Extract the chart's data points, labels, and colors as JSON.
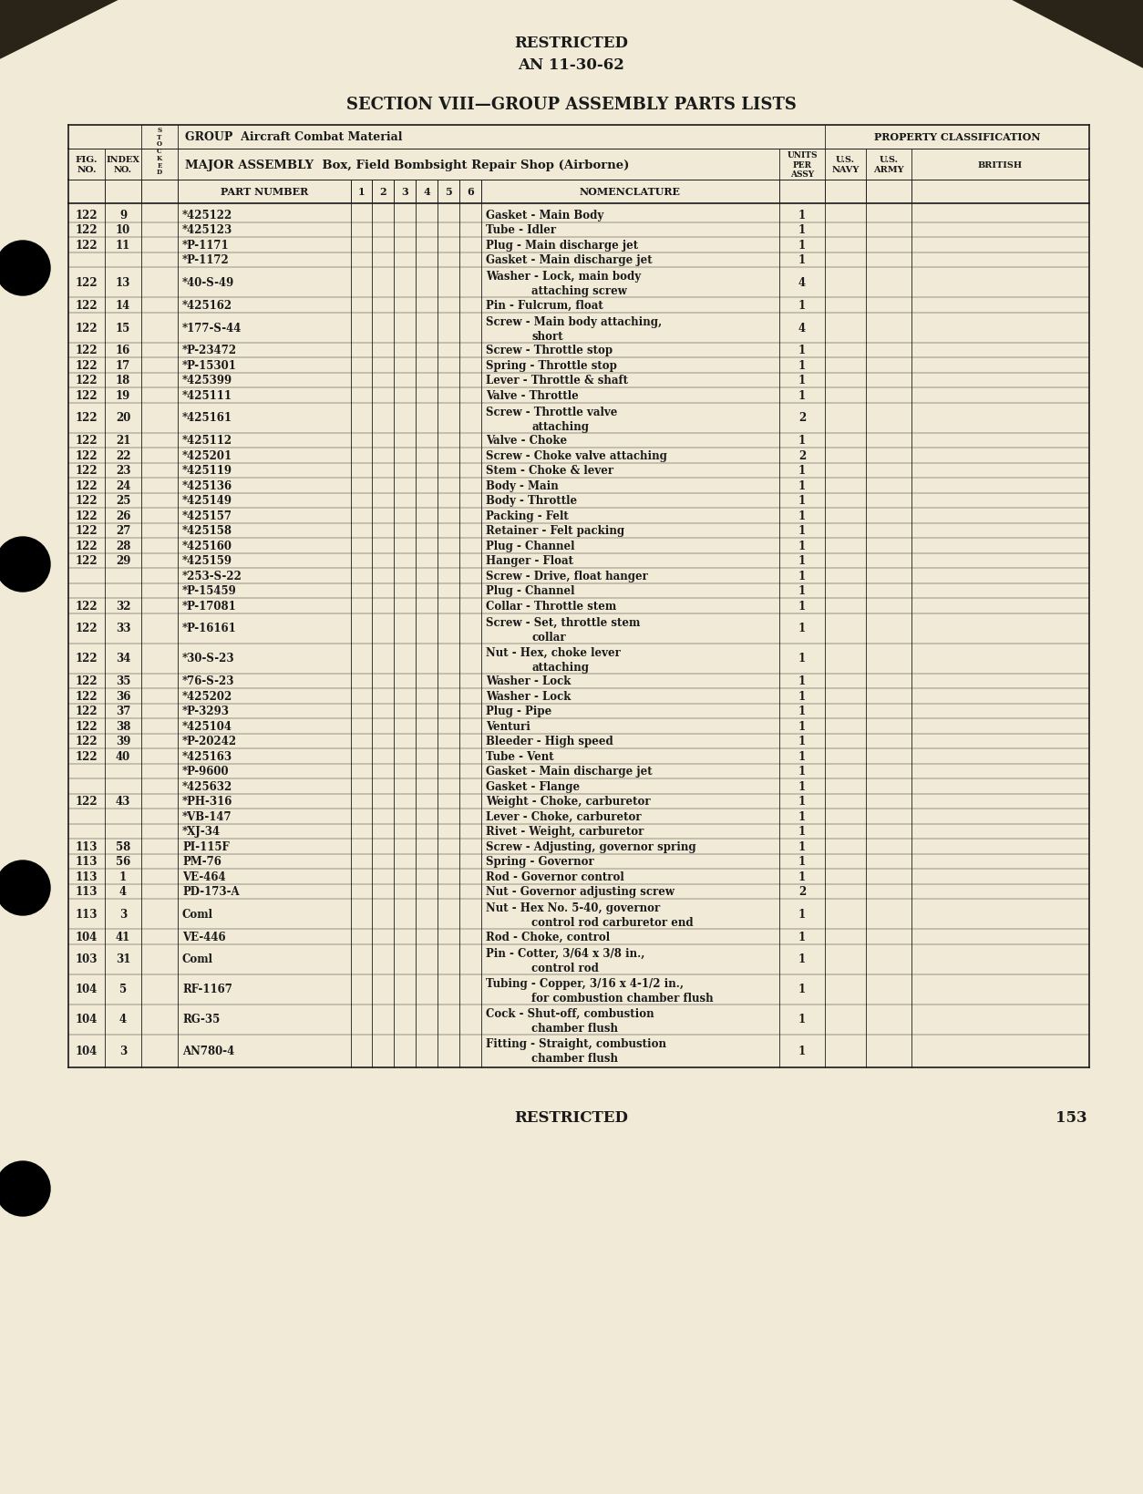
{
  "bg_color": "#f0ead6",
  "text_color": "#1a1a1a",
  "header_top": "RESTRICTED",
  "header_sub": "AN 11-30-62",
  "section_title": "SECTION VIII—GROUP ASSEMBLY PARTS LISTS",
  "footer_restricted": "RESTRICTED",
  "footer_page": "153",
  "rows": [
    [
      "122",
      "9",
      "*425122",
      "Gasket - Main Body",
      "1"
    ],
    [
      "122",
      "10",
      "*425123",
      "Tube - Idler",
      "1"
    ],
    [
      "122",
      "11",
      "*P-1171",
      "Plug - Main discharge jet",
      "1"
    ],
    [
      "",
      "",
      "*P-1172",
      "Gasket - Main discharge jet",
      "1"
    ],
    [
      "122",
      "13",
      "*40-S-49",
      "Washer - Lock, main body\n          attaching screw",
      "4"
    ],
    [
      "122",
      "14",
      "*425162",
      "Pin - Fulcrum, float",
      "1"
    ],
    [
      "122",
      "15",
      "*177-S-44",
      "Screw - Main body attaching,\n          short",
      "4"
    ],
    [
      "122",
      "16",
      "*P-23472",
      "Screw - Throttle stop",
      "1"
    ],
    [
      "122",
      "17",
      "*P-15301",
      "Spring - Throttle stop",
      "1"
    ],
    [
      "122",
      "18",
      "*425399",
      "Lever - Throttle & shaft",
      "1"
    ],
    [
      "122",
      "19",
      "*425111",
      "Valve - Throttle",
      "1"
    ],
    [
      "122",
      "20",
      "*425161",
      "Screw - Throttle valve\n          attaching",
      "2"
    ],
    [
      "122",
      "21",
      "*425112",
      "Valve - Choke",
      "1"
    ],
    [
      "122",
      "22",
      "*425201",
      "Screw - Choke valve attaching",
      "2"
    ],
    [
      "122",
      "23",
      "*425119",
      "Stem - Choke & lever",
      "1"
    ],
    [
      "122",
      "24",
      "*425136",
      "Body - Main",
      "1"
    ],
    [
      "122",
      "25",
      "*425149",
      "Body - Throttle",
      "1"
    ],
    [
      "122",
      "26",
      "*425157",
      "Packing - Felt",
      "1"
    ],
    [
      "122",
      "27",
      "*425158",
      "Retainer - Felt packing",
      "1"
    ],
    [
      "122",
      "28",
      "*425160",
      "Plug - Channel",
      "1"
    ],
    [
      "122",
      "29",
      "*425159",
      "Hanger - Float",
      "1"
    ],
    [
      "",
      "",
      "*253-S-22",
      "Screw - Drive, float hanger",
      "1"
    ],
    [
      "",
      "",
      "*P-15459",
      "Plug - Channel",
      "1"
    ],
    [
      "122",
      "32",
      "*P-17081",
      "Collar - Throttle stem",
      "1"
    ],
    [
      "122",
      "33",
      "*P-16161",
      "Screw - Set, throttle stem\n          collar",
      "1"
    ],
    [
      "122",
      "34",
      "*30-S-23",
      "Nut - Hex, choke lever\n          attaching",
      "1"
    ],
    [
      "122",
      "35",
      "*76-S-23",
      "Washer - Lock",
      "1"
    ],
    [
      "122",
      "36",
      "*425202",
      "Washer - Lock",
      "1"
    ],
    [
      "122",
      "37",
      "*P-3293",
      "Plug - Pipe",
      "1"
    ],
    [
      "122",
      "38",
      "*425104",
      "Venturi",
      "1"
    ],
    [
      "122",
      "39",
      "*P-20242",
      "Bleeder - High speed",
      "1"
    ],
    [
      "122",
      "40",
      "*425163",
      "Tube - Vent",
      "1"
    ],
    [
      "",
      "",
      "*P-9600",
      "Gasket - Main discharge jet",
      "1"
    ],
    [
      "",
      "",
      "*425632",
      "Gasket - Flange",
      "1"
    ],
    [
      "122",
      "43",
      "*PH-316",
      "Weight - Choke, carburetor",
      "1"
    ],
    [
      "",
      "",
      "*VB-147",
      "Lever - Choke, carburetor",
      "1"
    ],
    [
      "",
      "",
      "*XJ-34",
      "Rivet - Weight, carburetor",
      "1"
    ],
    [
      "113",
      "58",
      "PI-115F",
      "Screw - Adjusting, governor spring",
      "1"
    ],
    [
      "113",
      "56",
      "PM-76",
      "Spring - Governor",
      "1"
    ],
    [
      "113",
      "1",
      "VE-464",
      "Rod - Governor control",
      "1"
    ],
    [
      "113",
      "4",
      "PD-173-A",
      "Nut - Governor adjusting screw",
      "2"
    ],
    [
      "113",
      "3",
      "Coml",
      "Nut - Hex No. 5-40, governor\n          control rod carburetor end",
      "1"
    ],
    [
      "104",
      "41",
      "VE-446",
      "Rod - Choke, control",
      "1"
    ],
    [
      "103",
      "31",
      "Coml",
      "Pin - Cotter, 3/64 x 3/8 in.,\n          control rod",
      "1"
    ],
    [
      "104",
      "5",
      "RF-1167",
      "Tubing - Copper, 3/16 x 4-1/2 in.,\n          for combustion chamber flush",
      "1"
    ],
    [
      "104",
      "4",
      "RG-35",
      "Cock - Shut-off, combustion\n          chamber flush",
      "1"
    ],
    [
      "104",
      "3",
      "AN780-4",
      "Fitting - Straight, combustion\n          chamber flush",
      "1"
    ]
  ]
}
